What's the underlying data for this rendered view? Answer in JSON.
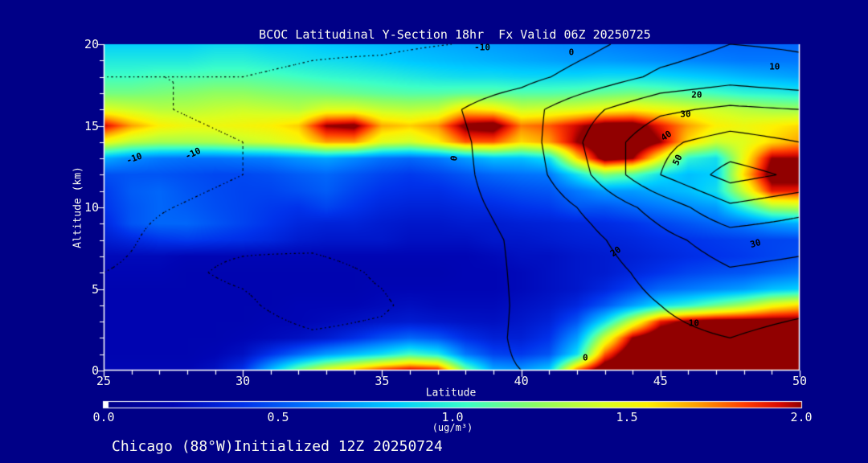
{
  "title": "BCOC Latitudinal Y-Section 18hr  Fx Valid 06Z 20250725",
  "caption": "Chicago (88°W)Initialized 12Z 20250724",
  "axes": {
    "x_label": "Latitude",
    "y_label": "Altitude (km)",
    "x_ticks": [
      25,
      30,
      35,
      40,
      45,
      50
    ],
    "y_ticks": [
      0,
      5,
      10,
      15,
      20
    ],
    "x_range": [
      25,
      50
    ],
    "y_range": [
      0,
      20
    ],
    "x_minor_step": 1,
    "y_minor_step": 1
  },
  "colorbar": {
    "ticks": [
      "0.0",
      "0.5",
      "1.0",
      "1.5",
      "2.0"
    ],
    "tick_values": [
      0,
      0.5,
      1.0,
      1.5,
      2.0
    ],
    "unit": "(ug/m³)",
    "min": 0,
    "max": 2
  },
  "colors": {
    "background": "#000087",
    "text": "#fafaf0",
    "axis": "#ffffff",
    "contour_line": "#000000",
    "colormap": [
      [
        0.0,
        "#000087"
      ],
      [
        0.1,
        "#0005b4"
      ],
      [
        0.2,
        "#0032eb"
      ],
      [
        0.3,
        "#0078ff"
      ],
      [
        0.42,
        "#00cdff"
      ],
      [
        0.52,
        "#3cffc8"
      ],
      [
        0.62,
        "#8cff64"
      ],
      [
        0.72,
        "#dcff1e"
      ],
      [
        0.78,
        "#fff000"
      ],
      [
        0.85,
        "#ffa000"
      ],
      [
        0.92,
        "#ff3c00"
      ],
      [
        0.97,
        "#d70a00"
      ],
      [
        1.0,
        "#910000"
      ]
    ]
  },
  "chart_data": {
    "type": "heatmap",
    "title": "BCOC Latitudinal Y-Section 18hr  Fx Valid 06Z 20250725",
    "xlabel": "Latitude",
    "ylabel": "Altitude (km)",
    "xlim": [
      25,
      50
    ],
    "ylim": [
      0,
      20
    ],
    "fill_units": "ug/m3",
    "fill_range": [
      0,
      2
    ],
    "fill_field": {
      "lat_min": 25,
      "lat_step": 1,
      "alt_min": 0,
      "alt_step": 1,
      "values": [
        [
          0.2,
          0.2,
          0.2,
          0.2,
          0.25,
          0.4,
          0.8,
          1.2,
          1.5,
          1.7,
          1.9,
          2.0,
          1.95,
          1.2,
          0.75,
          0.7,
          0.85,
          1.8,
          2.2,
          2.2,
          2.2,
          2.2,
          2.2,
          2.2,
          2.2,
          2.2
        ],
        [
          0.18,
          0.18,
          0.18,
          0.18,
          0.2,
          0.25,
          0.4,
          0.55,
          0.7,
          0.8,
          0.9,
          1.05,
          0.95,
          0.6,
          0.45,
          0.42,
          0.5,
          0.9,
          1.8,
          2.2,
          2.2,
          2.2,
          2.2,
          2.2,
          2.2,
          2.2
        ],
        [
          0.18,
          0.18,
          0.18,
          0.18,
          0.18,
          0.2,
          0.22,
          0.25,
          0.3,
          0.38,
          0.48,
          0.55,
          0.5,
          0.38,
          0.32,
          0.32,
          0.4,
          0.7,
          1.4,
          2.0,
          2.2,
          2.2,
          2.2,
          2.2,
          2.2,
          2.2
        ],
        [
          0.18,
          0.18,
          0.18,
          0.18,
          0.18,
          0.18,
          0.2,
          0.2,
          0.22,
          0.25,
          0.28,
          0.3,
          0.28,
          0.26,
          0.25,
          0.28,
          0.33,
          0.5,
          0.9,
          1.4,
          1.9,
          2.05,
          2.1,
          2.1,
          2.1,
          2.1
        ],
        [
          0.18,
          0.18,
          0.18,
          0.18,
          0.18,
          0.18,
          0.18,
          0.2,
          0.2,
          0.2,
          0.22,
          0.24,
          0.22,
          0.22,
          0.22,
          0.25,
          0.28,
          0.35,
          0.5,
          0.7,
          0.9,
          1.0,
          1.15,
          1.3,
          1.5,
          1.6
        ],
        [
          0.18,
          0.18,
          0.18,
          0.18,
          0.18,
          0.18,
          0.18,
          0.18,
          0.18,
          0.18,
          0.2,
          0.2,
          0.2,
          0.2,
          0.2,
          0.22,
          0.25,
          0.28,
          0.35,
          0.45,
          0.55,
          0.6,
          0.65,
          0.7,
          0.8,
          0.85
        ],
        [
          0.2,
          0.2,
          0.2,
          0.18,
          0.18,
          0.18,
          0.18,
          0.18,
          0.18,
          0.18,
          0.18,
          0.18,
          0.18,
          0.2,
          0.2,
          0.22,
          0.25,
          0.28,
          0.3,
          0.35,
          0.4,
          0.45,
          0.48,
          0.5,
          0.55,
          0.6
        ],
        [
          0.22,
          0.22,
          0.22,
          0.2,
          0.2,
          0.2,
          0.2,
          0.2,
          0.2,
          0.2,
          0.2,
          0.2,
          0.2,
          0.2,
          0.22,
          0.25,
          0.25,
          0.28,
          0.3,
          0.32,
          0.35,
          0.38,
          0.4,
          0.42,
          0.45,
          0.48
        ],
        [
          0.3,
          0.35,
          0.4,
          0.42,
          0.4,
          0.38,
          0.35,
          0.3,
          0.28,
          0.28,
          0.28,
          0.25,
          0.25,
          0.25,
          0.28,
          0.28,
          0.3,
          0.32,
          0.33,
          0.35,
          0.38,
          0.4,
          0.42,
          0.44,
          0.45,
          0.46
        ],
        [
          0.35,
          0.5,
          0.55,
          0.55,
          0.5,
          0.45,
          0.4,
          0.35,
          0.33,
          0.33,
          0.3,
          0.28,
          0.28,
          0.3,
          0.3,
          0.32,
          0.33,
          0.35,
          0.37,
          0.4,
          0.45,
          0.5,
          0.55,
          0.6,
          0.7,
          0.75
        ],
        [
          0.4,
          0.5,
          0.55,
          0.52,
          0.48,
          0.45,
          0.42,
          0.4,
          0.45,
          0.4,
          0.35,
          0.33,
          0.33,
          0.35,
          0.37,
          0.4,
          0.42,
          0.5,
          0.5,
          0.55,
          0.6,
          0.65,
          0.7,
          1.0,
          1.3,
          1.35
        ],
        [
          0.42,
          0.52,
          0.55,
          0.5,
          0.47,
          0.45,
          0.45,
          0.48,
          0.52,
          0.45,
          0.4,
          0.38,
          0.38,
          0.42,
          0.45,
          0.48,
          0.5,
          0.6,
          0.7,
          0.7,
          0.75,
          0.8,
          0.9,
          1.4,
          1.9,
          1.9
        ],
        [
          0.48,
          0.5,
          0.5,
          0.48,
          0.46,
          0.46,
          0.48,
          0.52,
          0.55,
          0.5,
          0.45,
          0.42,
          0.45,
          0.5,
          0.55,
          0.58,
          0.6,
          0.9,
          1.2,
          1.1,
          0.9,
          0.8,
          0.85,
          1.6,
          2.1,
          2.1
        ],
        [
          0.75,
          0.65,
          0.6,
          0.58,
          0.58,
          0.6,
          0.62,
          0.68,
          0.72,
          0.65,
          0.58,
          0.55,
          0.6,
          0.7,
          0.8,
          0.8,
          0.9,
          1.6,
          2.1,
          2.0,
          1.5,
          1.0,
          0.9,
          1.5,
          2.0,
          2.0
        ],
        [
          1.5,
          1.35,
          1.3,
          1.3,
          1.32,
          1.38,
          1.42,
          1.5,
          1.7,
          1.7,
          1.45,
          1.4,
          1.55,
          1.8,
          1.8,
          1.6,
          1.7,
          2.0,
          2.2,
          2.2,
          2.0,
          1.6,
          1.4,
          1.45,
          1.6,
          1.7
        ],
        [
          1.95,
          1.7,
          1.55,
          1.5,
          1.5,
          1.52,
          1.55,
          1.62,
          2.0,
          2.05,
          1.68,
          1.62,
          1.72,
          2.05,
          2.1,
          1.75,
          1.8,
          1.95,
          2.1,
          2.1,
          1.9,
          1.7,
          1.55,
          1.5,
          1.55,
          1.6
        ],
        [
          1.45,
          1.4,
          1.35,
          1.35,
          1.38,
          1.4,
          1.38,
          1.35,
          1.45,
          1.45,
          1.38,
          1.35,
          1.38,
          1.6,
          1.55,
          1.4,
          1.42,
          1.45,
          1.5,
          1.55,
          1.5,
          1.45,
          1.4,
          1.35,
          1.3,
          1.28
        ],
        [
          1.18,
          1.18,
          1.2,
          1.22,
          1.25,
          1.25,
          1.22,
          1.2,
          1.18,
          1.15,
          1.12,
          1.1,
          1.1,
          1.12,
          1.12,
          1.1,
          1.1,
          1.12,
          1.15,
          1.18,
          1.15,
          1.1,
          1.05,
          1.0,
          0.98,
          0.95
        ],
        [
          1.05,
          1.05,
          1.08,
          1.08,
          1.1,
          1.1,
          1.08,
          1.05,
          1.02,
          1.0,
          0.98,
          0.95,
          0.92,
          0.9,
          0.9,
          0.88,
          0.88,
          0.88,
          0.9,
          0.9,
          0.88,
          0.85,
          0.82,
          0.78,
          0.75,
          0.72
        ],
        [
          0.95,
          0.95,
          0.95,
          0.95,
          0.98,
          0.98,
          0.95,
          0.92,
          0.9,
          0.88,
          0.85,
          0.82,
          0.8,
          0.78,
          0.76,
          0.74,
          0.72,
          0.7,
          0.7,
          0.68,
          0.66,
          0.64,
          0.62,
          0.6,
          0.6,
          0.6
        ],
        [
          0.85,
          0.85,
          0.85,
          0.85,
          0.88,
          0.88,
          0.85,
          0.85,
          0.82,
          0.8,
          0.78,
          0.76,
          0.74,
          0.72,
          0.7,
          0.68,
          0.66,
          0.64,
          0.62,
          0.6,
          0.58,
          0.56,
          0.55,
          0.55,
          0.55,
          0.55
        ]
      ]
    },
    "contour_field": {
      "lat_min": 25,
      "lat_step": 2.5,
      "alt_min": 0,
      "alt_step": 2,
      "levels": [
        -10,
        0,
        10,
        20,
        30,
        40,
        50
      ],
      "negative_style": "dotted",
      "values": [
        [
          -8,
          -6,
          -5,
          -5,
          -4,
          -2,
          0,
          3,
          5,
          5,
          3
        ],
        [
          -9,
          -7,
          -7,
          -9,
          -8,
          -4,
          1,
          5,
          8,
          10,
          7
        ],
        [
          -9,
          -8,
          -9,
          -13,
          -11,
          -5,
          1,
          5,
          10,
          14,
          12
        ],
        [
          -10,
          -9,
          -11,
          -13,
          -9,
          -4,
          1,
          6,
          13,
          19,
          17
        ],
        [
          -11,
          -9,
          -9,
          -8,
          -6,
          -3,
          1,
          8,
          17,
          25,
          23
        ],
        [
          -11,
          -10,
          -9,
          -8,
          -5,
          -2,
          2,
          12,
          24,
          38,
          33
        ],
        [
          -12,
          -11,
          -10,
          -8,
          -5,
          -2,
          4,
          20,
          40,
          54,
          48
        ],
        [
          -12,
          -11,
          -10,
          -9,
          -6,
          -2,
          5,
          22,
          38,
          44,
          40
        ],
        [
          -11,
          -10,
          -9,
          -8,
          -5,
          -1,
          6,
          18,
          28,
          32,
          30
        ],
        [
          -10,
          -10,
          -10,
          -9,
          -8,
          -6,
          -3,
          4,
          12,
          16,
          13
        ],
        [
          -12,
          -12,
          -12,
          -11,
          -11,
          -10,
          -8,
          -2,
          5,
          10,
          9
        ]
      ]
    },
    "contour_labels": [
      {
        "text": "-10",
        "lat": 38.6,
        "alt": 19.8,
        "rot": 0
      },
      {
        "text": "-10",
        "lat": 26.1,
        "alt": 13.0,
        "rot": -20
      },
      {
        "text": "-10",
        "lat": 28.2,
        "alt": 13.3,
        "rot": -25
      },
      {
        "text": "0",
        "lat": 41.8,
        "alt": 19.5,
        "rot": 0
      },
      {
        "text": "0",
        "lat": 37.6,
        "alt": 13.0,
        "rot": -80
      },
      {
        "text": "0",
        "lat": 42.3,
        "alt": 0.8,
        "rot": 0
      },
      {
        "text": "10",
        "lat": 49.1,
        "alt": 18.6,
        "rot": 0
      },
      {
        "text": "10",
        "lat": 46.2,
        "alt": 2.9,
        "rot": 0
      },
      {
        "text": "20",
        "lat": 46.3,
        "alt": 16.9,
        "rot": 0
      },
      {
        "text": "20",
        "lat": 43.4,
        "alt": 7.3,
        "rot": -35
      },
      {
        "text": "30",
        "lat": 45.9,
        "alt": 15.7,
        "rot": 0
      },
      {
        "text": "30",
        "lat": 48.4,
        "alt": 7.8,
        "rot": -15
      },
      {
        "text": "40",
        "lat": 45.2,
        "alt": 14.4,
        "rot": -35
      },
      {
        "text": "50",
        "lat": 45.6,
        "alt": 12.9,
        "rot": -65
      }
    ]
  }
}
